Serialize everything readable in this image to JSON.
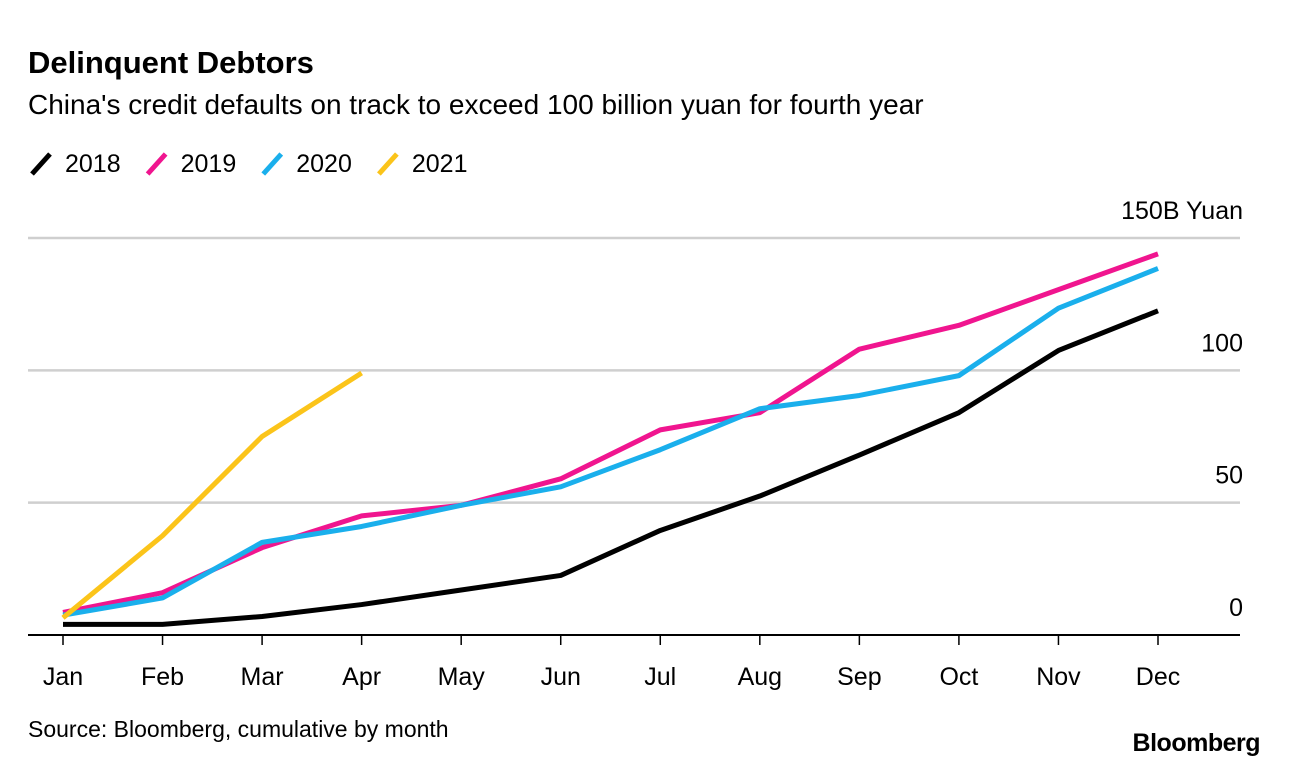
{
  "chart_data": {
    "type": "line",
    "title": "Delinquent Debtors",
    "subtitle": "China's credit defaults on track to exceed 100 billion yuan for fourth year",
    "categories": [
      "Jan",
      "Feb",
      "Mar",
      "Apr",
      "May",
      "Jun",
      "Jul",
      "Aug",
      "Sep",
      "Oct",
      "Nov",
      "Dec"
    ],
    "series": [
      {
        "name": "2018",
        "color": "#000000",
        "values": [
          4,
          4,
          7,
          11.5,
          17,
          22.5,
          39.5,
          52.5,
          68,
          84,
          107.5,
          122.5
        ]
      },
      {
        "name": "2019",
        "color": "#f0158f",
        "values": [
          8.5,
          16,
          33,
          45,
          49,
          59,
          77.5,
          84,
          108,
          117,
          130.5,
          144
        ]
      },
      {
        "name": "2020",
        "color": "#1aafec",
        "values": [
          7.5,
          14,
          35,
          41,
          49,
          56,
          70,
          85.5,
          90.5,
          98,
          123.5,
          138.5
        ]
      },
      {
        "name": "2021",
        "color": "#fbc41a",
        "values": [
          6.5,
          37.5,
          75,
          99,
          null,
          null,
          null,
          null,
          null,
          null,
          null,
          null
        ]
      }
    ],
    "ylim": [
      0,
      150
    ],
    "yticks": [
      0,
      50,
      100,
      {
        "value": 150,
        "label": "150B Yuan"
      }
    ],
    "grid": true,
    "legend": "top-left",
    "source": "Source: Bloomberg, cumulative by month",
    "brand": "Bloomberg"
  }
}
